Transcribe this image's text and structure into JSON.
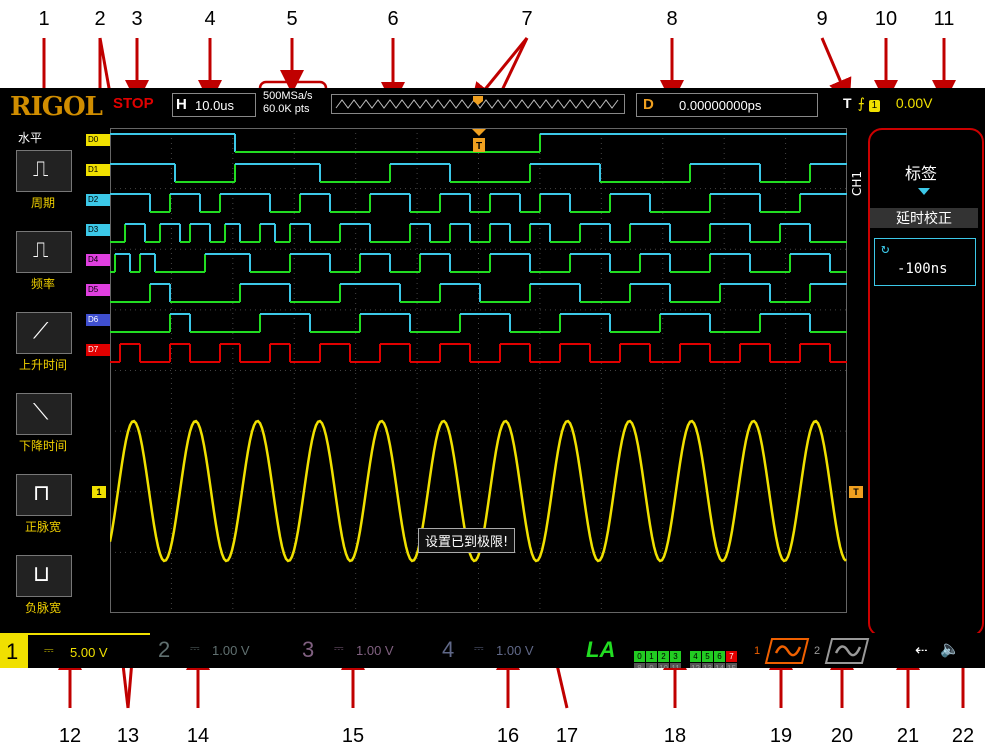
{
  "callouts_top": [
    "1",
    "2",
    "3",
    "4",
    "5",
    "6",
    "7",
    "8",
    "9",
    "10",
    "11"
  ],
  "callouts_bottom": [
    "12",
    "13",
    "14",
    "15",
    "16",
    "17",
    "18",
    "19",
    "20",
    "21",
    "22"
  ],
  "header": {
    "logo": "RIGOL",
    "run_state": "STOP",
    "timebase_label": "H",
    "timebase_value": "10.0us",
    "sample_rate": "500MSa/s",
    "memory_depth": "60.0K pts",
    "delay_label": "D",
    "delay_value": "0.00000000ps",
    "trigger_label": "T",
    "trigger_source": "1",
    "trigger_level": "0.00V"
  },
  "left_menu": {
    "title": "水平",
    "items": [
      "周期",
      "频率",
      "上升时间",
      "下降时间",
      "正脉宽",
      "负脉宽"
    ]
  },
  "right_menu": {
    "channel": "CH1",
    "title": "标签",
    "sub_title": "延时校正",
    "value": "-100ns"
  },
  "digital_channels": [
    "D0",
    "D1",
    "D2",
    "D3",
    "D4",
    "D5",
    "D6",
    "D7"
  ],
  "analog_marker": "1",
  "trigger_marker": "T",
  "message": "设置已到极限!",
  "bottom": {
    "ch1_num": "1",
    "ch1_scale": "5.00 V",
    "ch2_num": "2",
    "ch2_scale": "1.00 V",
    "ch3_num": "3",
    "ch3_scale": "1.00 V",
    "ch4_num": "4",
    "ch4_scale": "1.00 V",
    "la_label": "LA",
    "la_top": [
      "0",
      "1",
      "2",
      "3",
      "4",
      "5",
      "6",
      "7"
    ],
    "la_bottom": [
      "8",
      "9",
      "10",
      "11",
      "12",
      "13",
      "14",
      "15"
    ],
    "math1": "1",
    "math2": "2"
  },
  "colors": {
    "ch1": "#f0e000",
    "ch2": "#3cc8e8",
    "ch3": "#e040e0",
    "ch4": "#2060f0",
    "digital_high": "#3cc8e8",
    "digital_low": "#22dd22",
    "d7": "#e00000",
    "callout": "#c00000"
  }
}
